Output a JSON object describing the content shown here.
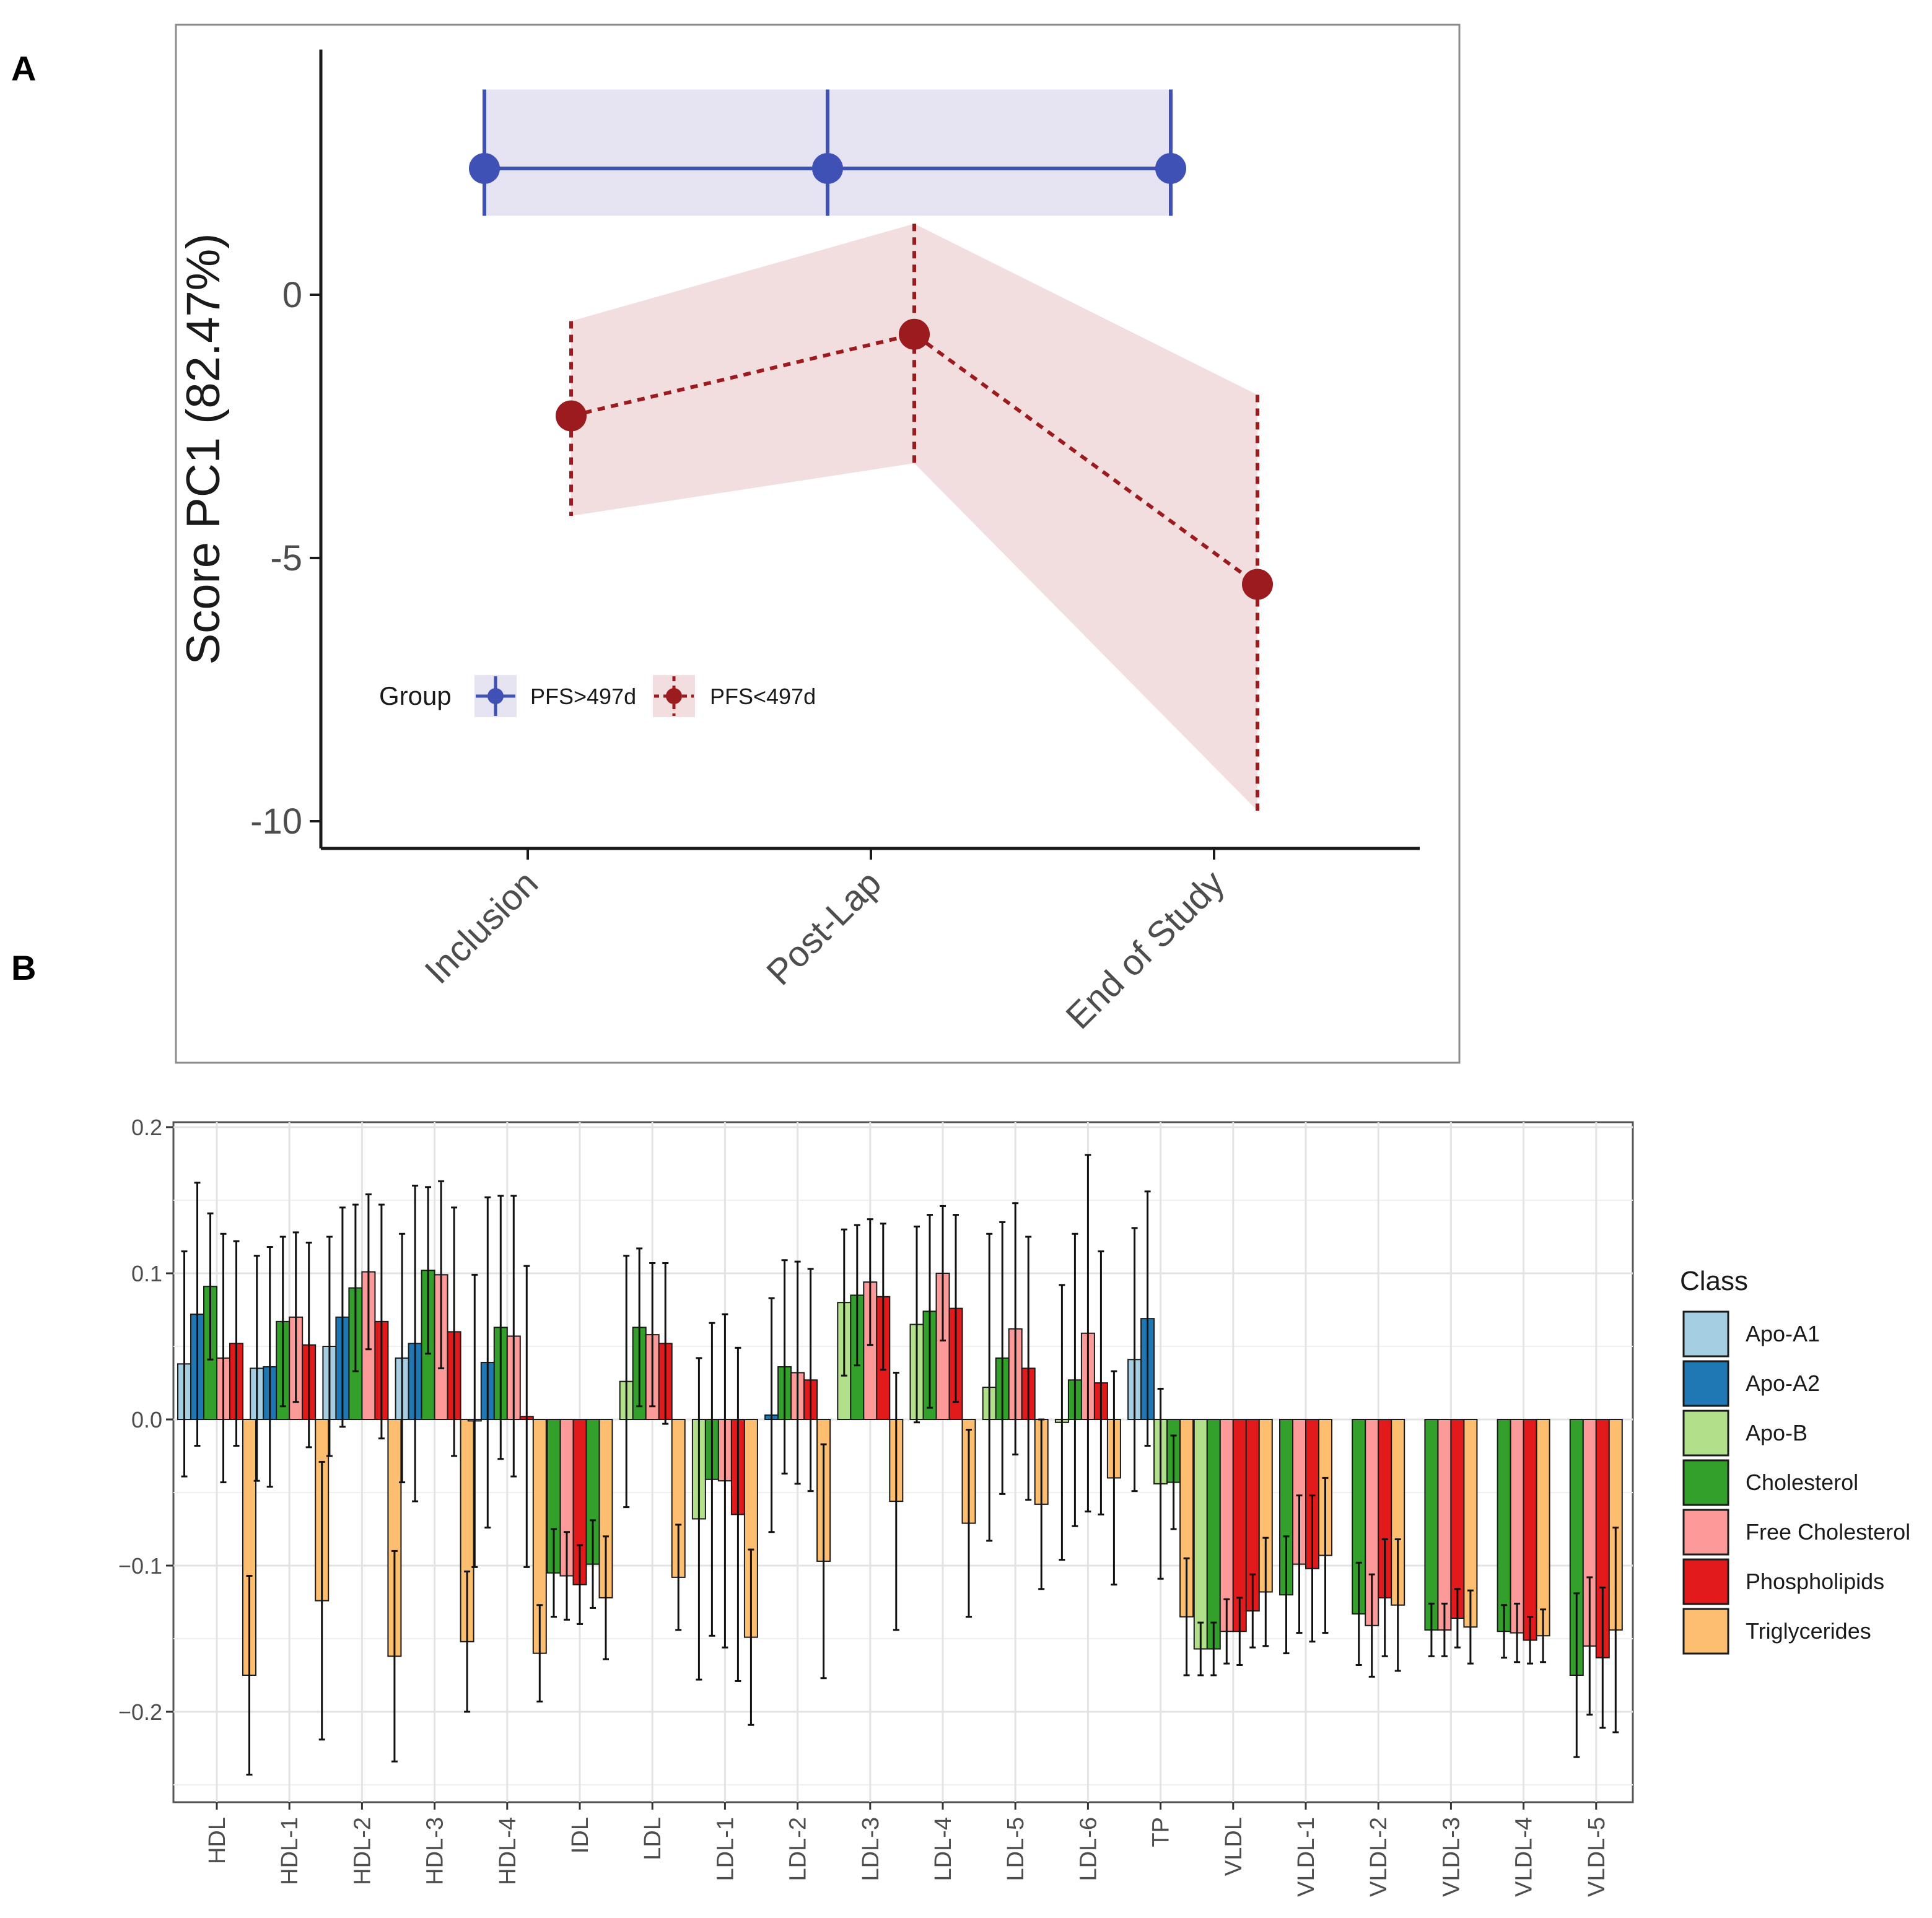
{
  "panels": {
    "a_label": "A",
    "b_label": "B"
  },
  "chart_data": [
    {
      "type": "line",
      "ylabel": "Score PC1 (82.47%)",
      "xlabel": "",
      "categories": [
        "Inclusion",
        "Post-Lap",
        "End of Study"
      ],
      "yticks": [
        0,
        -5,
        -10
      ],
      "ytick_labels": [
        "0",
        "-5",
        "-10"
      ],
      "ylim": [
        -10.5,
        4.6
      ],
      "grid": false,
      "legend": {
        "title": "Group",
        "position": "bottom-left"
      },
      "series": [
        {
          "name": "PFS>497d",
          "color": "#3F51B5",
          "linetype": "solid",
          "values": [
            2.4,
            2.4,
            2.4
          ],
          "lower": [
            1.5,
            1.5,
            1.5
          ],
          "upper": [
            3.9,
            3.9,
            3.9
          ]
        },
        {
          "name": "PFS<497d",
          "color": "#9B1B1E",
          "linetype": "dashed",
          "values": [
            -2.3,
            -0.75,
            -5.5
          ],
          "lower": [
            -4.2,
            -3.2,
            -9.8
          ],
          "upper": [
            -0.5,
            1.35,
            -1.9
          ]
        }
      ]
    },
    {
      "type": "bar",
      "xlabel": "",
      "ylabel": "",
      "ylim": [
        -0.26,
        0.2
      ],
      "yticks": [
        0.2,
        0.1,
        0.0,
        -0.1,
        -0.2
      ],
      "ytick_labels": [
        "0.2",
        "0.1",
        "0.0",
        "−0.1",
        "−0.2"
      ],
      "grid": true,
      "legend": {
        "title": "Class",
        "position": "right"
      },
      "classes": [
        "Apo-A1",
        "Apo-A2",
        "Apo-B",
        "Cholesterol",
        "Free Cholesterol",
        "Phospholipids",
        "Triglycerides"
      ],
      "colors": [
        "#A6CEE3",
        "#1F78B4",
        "#B2DF8A",
        "#33A02C",
        "#FB9A99",
        "#E31A1C",
        "#FDBF6F"
      ],
      "categories": [
        "HDL",
        "HDL-1",
        "HDL-2",
        "HDL-3",
        "HDL-4",
        "IDL",
        "LDL",
        "LDL-1",
        "LDL-2",
        "LDL-3",
        "LDL-4",
        "LDL-5",
        "LDL-6",
        "TP",
        "VLDL",
        "VLDL-1",
        "VLDL-2",
        "VLDL-3",
        "VLDL-4",
        "VLDL-5"
      ],
      "groups": [
        {
          "label": "HDL",
          "bars": [
            {
              "cls": 0,
              "v": 0.038,
              "err": 0.077
            },
            {
              "cls": 1,
              "v": 0.072,
              "err": 0.09
            },
            {
              "cls": 3,
              "v": 0.091,
              "err": 0.05
            },
            {
              "cls": 4,
              "v": 0.042,
              "err": 0.085
            },
            {
              "cls": 5,
              "v": 0.052,
              "err": 0.07
            },
            {
              "cls": 6,
              "v": -0.175,
              "err": 0.068
            }
          ]
        },
        {
          "label": "HDL-1",
          "bars": [
            {
              "cls": 0,
              "v": 0.035,
              "err": 0.077
            },
            {
              "cls": 1,
              "v": 0.036,
              "err": 0.082
            },
            {
              "cls": 3,
              "v": 0.067,
              "err": 0.058
            },
            {
              "cls": 4,
              "v": 0.07,
              "err": 0.058
            },
            {
              "cls": 5,
              "v": 0.051,
              "err": 0.07
            },
            {
              "cls": 6,
              "v": -0.124,
              "err": 0.095
            }
          ]
        },
        {
          "label": "HDL-2",
          "bars": [
            {
              "cls": 0,
              "v": 0.05,
              "err": 0.075
            },
            {
              "cls": 1,
              "v": 0.07,
              "err": 0.075
            },
            {
              "cls": 3,
              "v": 0.09,
              "err": 0.057
            },
            {
              "cls": 4,
              "v": 0.101,
              "err": 0.053
            },
            {
              "cls": 5,
              "v": 0.067,
              "err": 0.08
            },
            {
              "cls": 6,
              "v": -0.162,
              "err": 0.072
            }
          ]
        },
        {
          "label": "HDL-3",
          "bars": [
            {
              "cls": 0,
              "v": 0.042,
              "err": 0.085
            },
            {
              "cls": 1,
              "v": 0.052,
              "err": 0.108
            },
            {
              "cls": 3,
              "v": 0.102,
              "err": 0.057
            },
            {
              "cls": 4,
              "v": 0.099,
              "err": 0.064
            },
            {
              "cls": 5,
              "v": 0.06,
              "err": 0.085
            },
            {
              "cls": 6,
              "v": -0.152,
              "err": 0.048
            }
          ]
        },
        {
          "label": "HDL-4",
          "bars": [
            {
              "cls": 0,
              "v": -0.001,
              "err": 0.1
            },
            {
              "cls": 1,
              "v": 0.039,
              "err": 0.113
            },
            {
              "cls": 3,
              "v": 0.063,
              "err": 0.09
            },
            {
              "cls": 4,
              "v": 0.057,
              "err": 0.096
            },
            {
              "cls": 5,
              "v": 0.002,
              "err": 0.103
            },
            {
              "cls": 6,
              "v": -0.16,
              "err": 0.033
            }
          ]
        },
        {
          "label": "IDL",
          "bars": [
            {
              "cls": 3,
              "v": -0.105,
              "err": 0.03
            },
            {
              "cls": 4,
              "v": -0.107,
              "err": 0.03
            },
            {
              "cls": 5,
              "v": -0.113,
              "err": 0.027
            },
            {
              "cls": 3,
              "v": -0.099,
              "err": 0.03
            },
            {
              "cls": 6,
              "v": -0.122,
              "err": 0.042
            }
          ]
        },
        {
          "label": "LDL",
          "bars": [
            {
              "cls": 2,
              "v": 0.026,
              "err": 0.086
            },
            {
              "cls": 3,
              "v": 0.063,
              "err": 0.054
            },
            {
              "cls": 4,
              "v": 0.058,
              "err": 0.049
            },
            {
              "cls": 5,
              "v": 0.052,
              "err": 0.055
            },
            {
              "cls": 6,
              "v": -0.108,
              "err": 0.036
            }
          ]
        },
        {
          "label": "LDL-1",
          "bars": [
            {
              "cls": 2,
              "v": -0.068,
              "err": 0.11
            },
            {
              "cls": 3,
              "v": -0.041,
              "err": 0.107
            },
            {
              "cls": 4,
              "v": -0.042,
              "err": 0.114
            },
            {
              "cls": 5,
              "v": -0.065,
              "err": 0.114
            },
            {
              "cls": 6,
              "v": -0.149,
              "err": 0.06
            }
          ]
        },
        {
          "label": "LDL-2",
          "bars": [
            {
              "cls": 1,
              "v": 0.003,
              "err": 0.08
            },
            {
              "cls": 3,
              "v": 0.036,
              "err": 0.073
            },
            {
              "cls": 4,
              "v": 0.032,
              "err": 0.076
            },
            {
              "cls": 5,
              "v": 0.027,
              "err": 0.076
            },
            {
              "cls": 6,
              "v": -0.097,
              "err": 0.08
            }
          ]
        },
        {
          "label": "LDL-3",
          "bars": [
            {
              "cls": 2,
              "v": 0.08,
              "err": 0.05
            },
            {
              "cls": 3,
              "v": 0.085,
              "err": 0.048
            },
            {
              "cls": 4,
              "v": 0.094,
              "err": 0.043
            },
            {
              "cls": 5,
              "v": 0.084,
              "err": 0.05
            },
            {
              "cls": 6,
              "v": -0.056,
              "err": 0.088
            }
          ]
        },
        {
          "label": "LDL-4",
          "bars": [
            {
              "cls": 2,
              "v": 0.065,
              "err": 0.067
            },
            {
              "cls": 3,
              "v": 0.074,
              "err": 0.066
            },
            {
              "cls": 4,
              "v": 0.1,
              "err": 0.046
            },
            {
              "cls": 5,
              "v": 0.076,
              "err": 0.064
            },
            {
              "cls": 6,
              "v": -0.071,
              "err": 0.064
            }
          ]
        },
        {
          "label": "LDL-5",
          "bars": [
            {
              "cls": 2,
              "v": 0.022,
              "err": 0.105
            },
            {
              "cls": 3,
              "v": 0.042,
              "err": 0.093
            },
            {
              "cls": 4,
              "v": 0.062,
              "err": 0.086
            },
            {
              "cls": 5,
              "v": 0.035,
              "err": 0.09
            },
            {
              "cls": 6,
              "v": -0.058,
              "err": 0.058
            }
          ]
        },
        {
          "label": "LDL-6",
          "bars": [
            {
              "cls": 2,
              "v": -0.002,
              "err": 0.094
            },
            {
              "cls": 3,
              "v": 0.027,
              "err": 0.1
            },
            {
              "cls": 4,
              "v": 0.059,
              "err": 0.122
            },
            {
              "cls": 5,
              "v": 0.025,
              "err": 0.09
            },
            {
              "cls": 6,
              "v": -0.04,
              "err": 0.073
            }
          ]
        },
        {
          "label": "TP",
          "bars": [
            {
              "cls": 0,
              "v": 0.041,
              "err": 0.09
            },
            {
              "cls": 1,
              "v": 0.069,
              "err": 0.087
            },
            {
              "cls": 2,
              "v": -0.044,
              "err": 0.065
            },
            {
              "cls": 3,
              "v": -0.043,
              "err": 0.032
            },
            {
              "cls": 6,
              "v": -0.135,
              "err": 0.04
            }
          ]
        },
        {
          "label": "VLDL",
          "bars": [
            {
              "cls": 2,
              "v": -0.157,
              "err": 0.018
            },
            {
              "cls": 3,
              "v": -0.157,
              "err": 0.018
            },
            {
              "cls": 4,
              "v": -0.145,
              "err": 0.022
            },
            {
              "cls": 5,
              "v": -0.145,
              "err": 0.023
            },
            {
              "cls": 5,
              "v": -0.131,
              "err": 0.025
            },
            {
              "cls": 6,
              "v": -0.118,
              "err": 0.037
            }
          ]
        },
        {
          "label": "VLDL-1",
          "bars": [
            {
              "cls": 3,
              "v": -0.12,
              "err": 0.04
            },
            {
              "cls": 4,
              "v": -0.099,
              "err": 0.047
            },
            {
              "cls": 5,
              "v": -0.102,
              "err": 0.05
            },
            {
              "cls": 6,
              "v": -0.093,
              "err": 0.053
            }
          ]
        },
        {
          "label": "VLDL-2",
          "bars": [
            {
              "cls": 3,
              "v": -0.133,
              "err": 0.035
            },
            {
              "cls": 4,
              "v": -0.141,
              "err": 0.035
            },
            {
              "cls": 5,
              "v": -0.122,
              "err": 0.04
            },
            {
              "cls": 6,
              "v": -0.127,
              "err": 0.045
            }
          ]
        },
        {
          "label": "VLDL-3",
          "bars": [
            {
              "cls": 3,
              "v": -0.144,
              "err": 0.018
            },
            {
              "cls": 4,
              "v": -0.144,
              "err": 0.018
            },
            {
              "cls": 5,
              "v": -0.136,
              "err": 0.02
            },
            {
              "cls": 6,
              "v": -0.142,
              "err": 0.025
            }
          ]
        },
        {
          "label": "VLDL-4",
          "bars": [
            {
              "cls": 3,
              "v": -0.145,
              "err": 0.018
            },
            {
              "cls": 4,
              "v": -0.146,
              "err": 0.02
            },
            {
              "cls": 5,
              "v": -0.151,
              "err": 0.016
            },
            {
              "cls": 6,
              "v": -0.148,
              "err": 0.018
            }
          ]
        },
        {
          "label": "VLDL-5",
          "bars": [
            {
              "cls": 3,
              "v": -0.175,
              "err": 0.056
            },
            {
              "cls": 4,
              "v": -0.155,
              "err": 0.047
            },
            {
              "cls": 5,
              "v": -0.163,
              "err": 0.048
            },
            {
              "cls": 6,
              "v": -0.144,
              "err": 0.07
            }
          ]
        }
      ]
    }
  ]
}
